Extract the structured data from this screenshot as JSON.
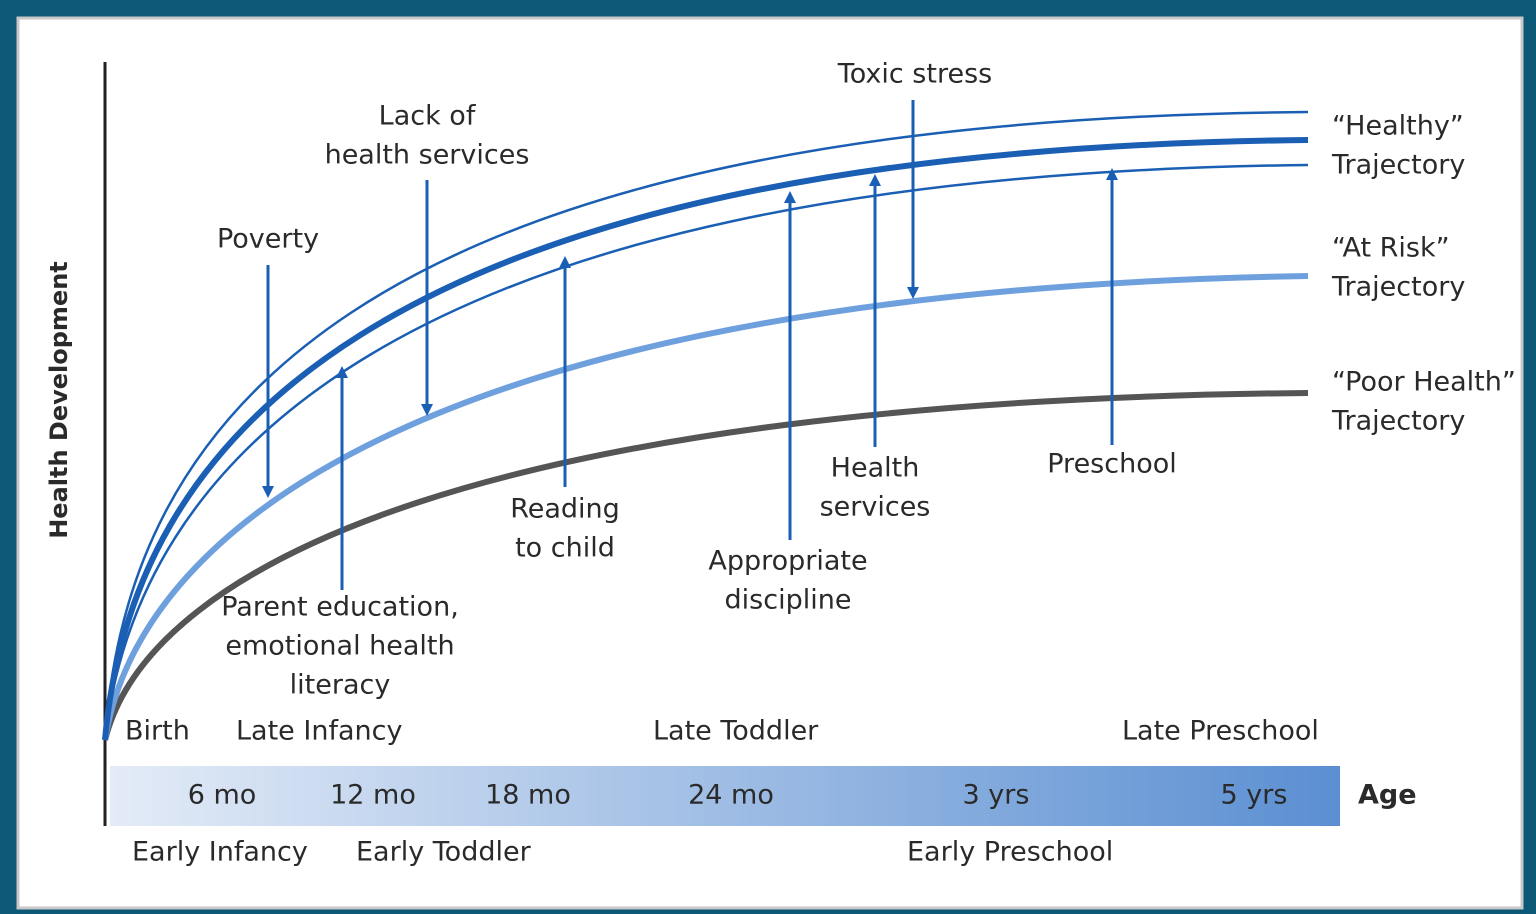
{
  "axis_label": "Health Development",
  "trajectories": [
    {
      "lines": [
        "“Healthy”",
        "Trajectory"
      ]
    },
    {
      "lines": [
        "“At Risk”",
        "Trajectory"
      ]
    },
    {
      "lines": [
        "“Poor Health”",
        "Trajectory"
      ]
    }
  ],
  "factors": [
    {
      "lines": [
        "Poverty"
      ]
    },
    {
      "lines": [
        "Lack of",
        "health services"
      ]
    },
    {
      "lines": [
        "Toxic stress"
      ]
    },
    {
      "lines": [
        "Parent education,",
        "emotional health",
        "literacy"
      ]
    },
    {
      "lines": [
        "Reading",
        "to child"
      ]
    },
    {
      "lines": [
        "Appropriate",
        "discipline"
      ]
    },
    {
      "lines": [
        "Health",
        "services"
      ]
    },
    {
      "lines": [
        "Preschool"
      ]
    }
  ],
  "age_label": "Age",
  "age_ticks": [
    "6 mo",
    "12 mo",
    "18 mo",
    "24 mo",
    "3 yrs",
    "5 yrs"
  ],
  "stages_upper": [
    "Birth",
    "Late Infancy",
    "Late Toddler",
    "Late Preschool"
  ],
  "stages_lower": [
    "Early Infancy",
    "Early Toddler",
    "Early Preschool"
  ]
}
